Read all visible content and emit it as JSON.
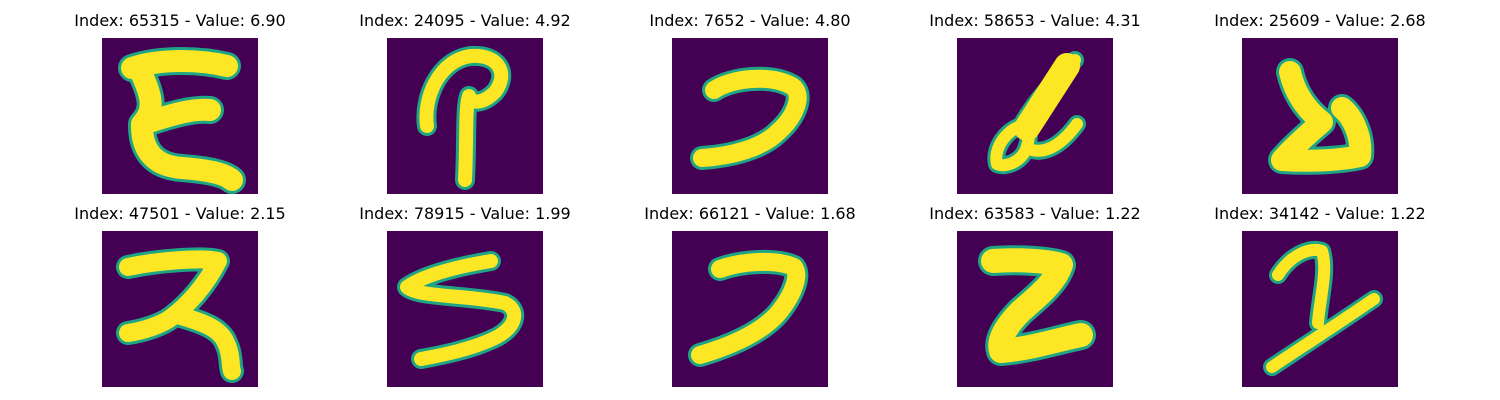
{
  "colors": {
    "background": "#440154",
    "stroke_core": "#fde725",
    "stroke_edge": "#20a486"
  },
  "panels": [
    {
      "title": "Index: 65315 - Value: 6.90",
      "glyph": "Ɛ-like stroke"
    },
    {
      "title": "Index: 24095 - Value: 4.92",
      "glyph": "looped stroke"
    },
    {
      "title": "Index: 7652 - Value: 4.80",
      "glyph": "hook stroke"
    },
    {
      "title": "Index: 58653 - Value: 4.31",
      "glyph": "slanted stroke"
    },
    {
      "title": "Index: 25609 - Value: 2.68",
      "glyph": "zigzag stroke"
    },
    {
      "title": "Index: 47501 - Value: 2.15",
      "glyph": "ス-like stroke"
    },
    {
      "title": "Index: 78915 - Value: 1.99",
      "glyph": "5-like stroke"
    },
    {
      "title": "Index: 66121 - Value: 1.68",
      "glyph": "hook stroke"
    },
    {
      "title": "Index: 63583 - Value: 1.22",
      "glyph": "Z-like stroke"
    },
    {
      "title": "Index: 34142 - Value: 1.22",
      "glyph": "2-like stroke"
    }
  ]
}
